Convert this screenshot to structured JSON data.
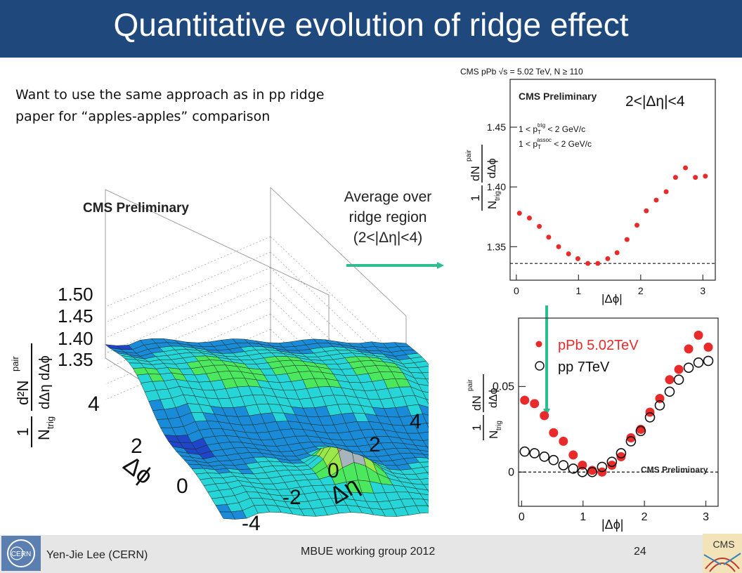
{
  "slide": {
    "title": "Quantitative evolution of ridge effect",
    "intro_line1": "Want to use the same approach as in pp ridge",
    "intro_line2": "paper for “apples-apples” comparison",
    "avg_line1": "Average over",
    "avg_line2": "ridge region",
    "avg_line3": "(2<|Δη|<4)",
    "footer": {
      "author": "Yen-Jie Lee (CERN)",
      "event": "MBUE working group 2012",
      "page": "24"
    },
    "logos": {
      "cern": "CERN",
      "cms": "CMS"
    },
    "colors": {
      "title_bar": "#1f497d",
      "arrow": "#2bbf8f",
      "ppb_marker": "#e82a2a",
      "pp_marker": "#111111"
    }
  },
  "chart_data": [
    {
      "type": "surface3d",
      "label": "CMS Preliminary",
      "zlabel": {
        "one": "1",
        "num": "d²N",
        "sup": "pair",
        "den": "dΔη dΔϕ",
        "ntrig": "N",
        "trig_sub": "trig"
      },
      "zticks": [
        "1.50",
        "1.45",
        "1.40",
        "1.35"
      ],
      "dphi_ticks": [
        "4",
        "2",
        "0"
      ],
      "deta_ticks": [
        "4",
        "2",
        "0",
        "-2",
        "-4"
      ],
      "dphi_label": "Δϕ",
      "deta_label": "Δη",
      "dphi_range": [
        -1.5,
        4.7
      ],
      "deta_range": [
        -4,
        4
      ],
      "zlim": [
        1.33,
        1.55
      ]
    },
    {
      "type": "scatter",
      "header": "CMS pPb √s = 5.02 TeV, N ≥ 110",
      "label": "CMS Preliminary",
      "region": "2<|Δη|<4",
      "cut_trig_a": "1 < p",
      "cut_trig_sup": "trig",
      "cut_trig_sub": "T",
      "cut_trig_b": " < 2 GeV/c",
      "cut_assoc_a": "1 < p",
      "cut_assoc_sup": "assoc",
      "cut_assoc_sub": "T",
      "cut_assoc_b": " < 2 GeV/c",
      "xlabel": "|Δϕ|",
      "ylabel": {
        "one": "1",
        "ntrig": "N",
        "trig_sub": "trig",
        "num": "dN",
        "sup": "pair",
        "den": "dΔϕ"
      },
      "xlim": [
        -0.1,
        3.2
      ],
      "ylim": [
        1.322,
        1.49
      ],
      "xticks": [
        0,
        1,
        2,
        3
      ],
      "yticks": [
        1.35,
        1.4,
        1.45
      ],
      "ytick_labels": [
        "1.35",
        "1.40",
        "1.45"
      ],
      "xtick_labels": [
        "0",
        "1",
        "2",
        "3"
      ],
      "baseline": 1.336,
      "series": [
        {
          "x": [
            0.05,
            0.21,
            0.37,
            0.52,
            0.68,
            0.84,
            0.99,
            1.15,
            1.31,
            1.47,
            1.62,
            1.78,
            1.94,
            2.09,
            2.25,
            2.41,
            2.56,
            2.72,
            2.88,
            3.04
          ],
          "y": [
            1.378,
            1.374,
            1.367,
            1.358,
            1.35,
            1.344,
            1.34,
            1.336,
            1.336,
            1.34,
            1.345,
            1.356,
            1.368,
            1.38,
            1.389,
            1.396,
            1.408,
            1.416,
            1.408,
            1.409
          ]
        }
      ]
    },
    {
      "type": "scatter",
      "label": "CMS Preliminary",
      "xlabel": "|Δϕ|",
      "ylabel": {
        "one": "1",
        "ntrig": "N",
        "trig_sub": "trig",
        "num": "dN",
        "sup": "pair",
        "den": "dΔϕ"
      },
      "xlim": [
        -0.05,
        3.2
      ],
      "ylim": [
        -0.02,
        0.09
      ],
      "xticks": [
        0,
        1,
        2,
        3
      ],
      "yticks": [
        0,
        0.05
      ],
      "ytick_labels": [
        "0",
        "0.05"
      ],
      "xtick_labels": [
        "0",
        "1",
        "2",
        "3"
      ],
      "baseline": 0,
      "series": [
        {
          "name": "pPb 5.02TeV",
          "x": [
            0.05,
            0.21,
            0.37,
            0.52,
            0.68,
            0.84,
            0.99,
            1.15,
            1.31,
            1.47,
            1.62,
            1.78,
            1.94,
            2.09,
            2.25,
            2.41,
            2.56,
            2.72,
            2.88,
            3.04
          ],
          "y": [
            0.042,
            0.04,
            0.033,
            0.023,
            0.018,
            0.01,
            0.004,
            0.001,
            0.0,
            0.004,
            0.009,
            0.02,
            0.025,
            0.035,
            0.043,
            0.054,
            0.06,
            0.072,
            0.08,
            0.073
          ]
        },
        {
          "name": "pp 7TeV",
          "x": [
            0.05,
            0.21,
            0.37,
            0.52,
            0.68,
            0.84,
            0.99,
            1.15,
            1.31,
            1.47,
            1.62,
            1.78,
            1.94,
            2.09,
            2.25,
            2.41,
            2.56,
            2.72,
            2.88,
            3.04
          ],
          "y": [
            0.012,
            0.011,
            0.009,
            0.007,
            0.004,
            0.002,
            0.0,
            0.0,
            0.003,
            0.006,
            0.011,
            0.018,
            0.024,
            0.032,
            0.039,
            0.047,
            0.054,
            0.061,
            0.064,
            0.065
          ]
        }
      ]
    }
  ]
}
